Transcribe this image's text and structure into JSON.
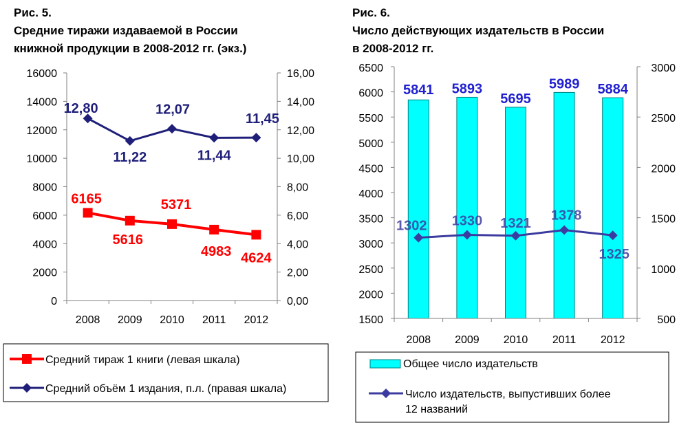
{
  "chart_data": [
    {
      "type": "line",
      "fig_label": "Рис. 5.",
      "title": "Средние тиражи издаваемой в России\nкнижной продукции в 2008-2012 гг. (экз.)",
      "categories": [
        "2008",
        "2009",
        "2010",
        "2011",
        "2012"
      ],
      "ylim_left": [
        0,
        16000
      ],
      "yticks_left": [
        "0",
        "2000",
        "4000",
        "6000",
        "8000",
        "10000",
        "12000",
        "14000",
        "16000"
      ],
      "ylim_right": [
        0,
        16
      ],
      "yticks_right": [
        "0,00",
        "2,00",
        "4,00",
        "6,00",
        "8,00",
        "10,00",
        "12,00",
        "14,00",
        "16,00"
      ],
      "grid": false,
      "legend_position": "bottom",
      "series": [
        {
          "name": "Средний тираж 1 книги (левая шкала)",
          "axis": "left",
          "color": "#ff0000",
          "marker": "square",
          "values": [
            6165,
            5616,
            5371,
            4983,
            4624
          ],
          "labels": [
            "6165",
            "5616",
            "5371",
            "4983",
            "4624"
          ]
        },
        {
          "name": "Средний объём 1 издания, п.л. (правая шкала)",
          "axis": "right",
          "color": "#1f1f7a",
          "marker": "diamond",
          "values": [
            12.8,
            11.22,
            12.07,
            11.44,
            11.45
          ],
          "labels": [
            "12,80",
            "11,22",
            "12,07",
            "11,44",
            "11,45"
          ]
        }
      ]
    },
    {
      "type": "bar",
      "fig_label": "Рис. 6.",
      "title": "Число действующих издательств в России\nв 2008-2012 гг.",
      "categories": [
        "2008",
        "2009",
        "2010",
        "2011",
        "2012"
      ],
      "ylim_left": [
        1500,
        6500
      ],
      "yticks_left": [
        "1500",
        "2000",
        "2500",
        "3000",
        "3500",
        "4000",
        "4500",
        "5000",
        "5500",
        "6000",
        "6500"
      ],
      "ylim_right": [
        500,
        3000
      ],
      "yticks_right": [
        "500",
        "1000",
        "1500",
        "2000",
        "2500",
        "3000"
      ],
      "grid": false,
      "legend_position": "bottom",
      "series": [
        {
          "name": "Общее число издательств",
          "axis": "left",
          "kind": "bar",
          "color": "#00ffff",
          "values": [
            5841,
            5893,
            5695,
            5989,
            5884
          ],
          "labels": [
            "5841",
            "5893",
            "5695",
            "5989",
            "5884"
          ]
        },
        {
          "name": "Число издательств, выпустивших более\n12 названий",
          "axis": "right",
          "kind": "line",
          "color": "#3c3ca0",
          "marker": "diamond",
          "values": [
            1302,
            1330,
            1321,
            1378,
            1325
          ],
          "labels": [
            "1302",
            "1330",
            "1321",
            "1378",
            "1325"
          ]
        }
      ]
    }
  ],
  "colors": {
    "label_blue": "#1f1f7a",
    "label_red": "#ff0000",
    "bar_blue_label": "#2020d0"
  }
}
